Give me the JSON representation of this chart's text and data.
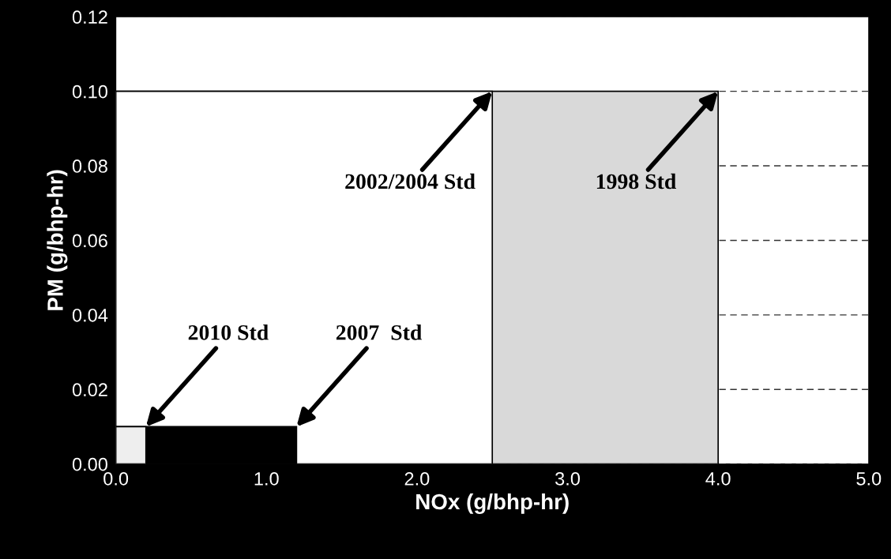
{
  "chart_data": {
    "type": "area",
    "xlabel": "NOx (g/bhp-hr)",
    "ylabel": "PM (g/bhp-hr)",
    "series": [
      {
        "color": "#d9d9d9",
        "x": [
          0,
          4.0,
          4.0
        ],
        "values": [
          0.1,
          0.1,
          0
        ]
      },
      {
        "color": "#ffffff",
        "x": [
          0,
          2.5,
          2.5
        ],
        "values": [
          0.1,
          0.1,
          0
        ]
      },
      {
        "color": "#000000",
        "x": [
          0,
          1.2,
          1.2
        ],
        "values": [
          0.01,
          0.01,
          0
        ]
      },
      {
        "color": "#eeeeee",
        "x": [
          0,
          0.2,
          0.2
        ],
        "values": [
          0.01,
          0.01,
          0
        ]
      }
    ],
    "annotations": [
      {
        "text": "1998 Std",
        "x": 4.0,
        "y": 0.1
      },
      {
        "text": "2002/2004 Std",
        "x": 2.5,
        "y": 0.1
      },
      {
        "text": "2007  Std",
        "x": 1.2,
        "y": 0.01
      },
      {
        "text": "2010 Std",
        "x": 0.2,
        "y": 0.01
      }
    ],
    "xlim": [
      0,
      5.0
    ],
    "ylim": [
      0,
      0.12
    ],
    "xticks": [
      {
        "value": 0,
        "label": "0.0"
      },
      {
        "value": 1,
        "label": "1.0"
      },
      {
        "value": 2,
        "label": "2.0"
      },
      {
        "value": 3,
        "label": "3.0"
      },
      {
        "value": 4,
        "label": "4.0"
      },
      {
        "value": 5,
        "label": "5.0"
      }
    ],
    "yticks": [
      {
        "value": 0,
        "label": "0.00"
      },
      {
        "value": 0.02,
        "label": "0.02"
      },
      {
        "value": 0.04,
        "label": "0.04"
      },
      {
        "value": 0.06,
        "label": "0.06"
      },
      {
        "value": 0.08,
        "label": "0.08"
      },
      {
        "value": 0.1,
        "label": "0.10"
      },
      {
        "value": 0.12,
        "label": "0.12"
      }
    ],
    "grid": "y"
  }
}
